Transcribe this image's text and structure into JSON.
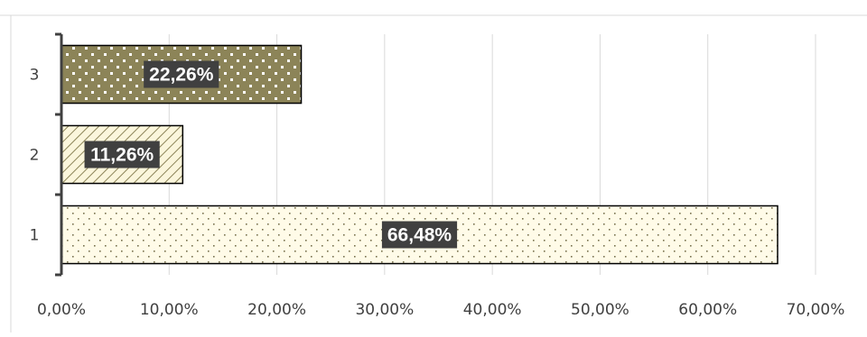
{
  "chart_data": {
    "type": "bar",
    "orientation": "horizontal",
    "title": "",
    "xlabel": "",
    "ylabel": "",
    "categories": [
      "1",
      "2",
      "3"
    ],
    "values": [
      66.48,
      11.26,
      22.26
    ],
    "data_labels": [
      "66,48%",
      "11,26%",
      "22,26%"
    ],
    "xlim": [
      0,
      70
    ],
    "x_ticks": [
      0,
      10,
      20,
      30,
      40,
      50,
      60,
      70
    ],
    "x_tick_labels": [
      "0,00%",
      "10,00%",
      "20,00%",
      "30,00%",
      "40,00%",
      "50,00%",
      "60,00%",
      "70,00%"
    ],
    "grid": "vertical",
    "legend": "none",
    "colors": {
      "bar_1": "#fffbe8",
      "bar_2": "#fbf6dc",
      "bar_3": "#8c8458",
      "gridline": "#d9d9d9",
      "label_box": "#404040"
    }
  }
}
